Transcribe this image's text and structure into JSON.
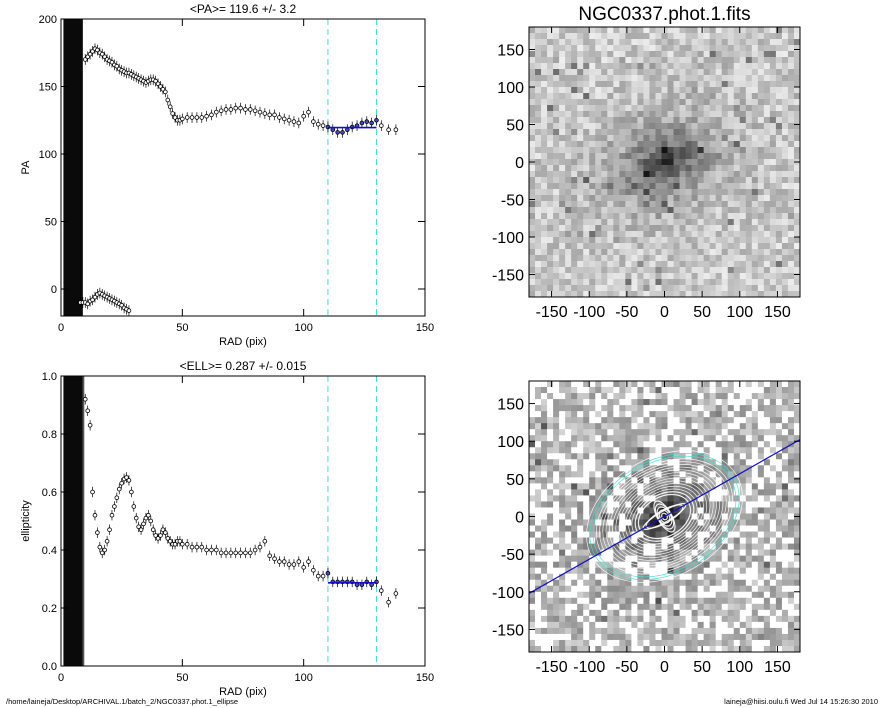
{
  "chart_data": [
    {
      "type": "scatter",
      "title": "<PA>= 119.6 +/-   3.2",
      "xlabel": "RAD (pix)",
      "ylabel": "PA",
      "xlim": [
        0,
        150
      ],
      "ylim": [
        -20,
        200
      ],
      "xticks": [
        "0",
        "50",
        "100",
        "150"
      ],
      "yticks": [
        "200",
        "150",
        "100",
        "50",
        "0"
      ],
      "vlines": [
        110,
        130
      ],
      "fit": {
        "value": 119.6,
        "x_range": [
          110,
          130
        ]
      },
      "masked_x_range": [
        1,
        9
      ],
      "series": [
        {
          "x": [
            10,
            11,
            12,
            13,
            14,
            15,
            16,
            17,
            18,
            19,
            20,
            21,
            22,
            23,
            24,
            25,
            26,
            27,
            28,
            29,
            30,
            31,
            32,
            33,
            34,
            35,
            36,
            37,
            38,
            39,
            40,
            41,
            42,
            43,
            44,
            45,
            46,
            47,
            48,
            49,
            50,
            52,
            54,
            56,
            58,
            60,
            62,
            64,
            66,
            68,
            70,
            72,
            74,
            76,
            78,
            80,
            82,
            84,
            86,
            88,
            90,
            92,
            94,
            96,
            98,
            100,
            102,
            104,
            106,
            108,
            110,
            112,
            114,
            116,
            118,
            120,
            122,
            124,
            126,
            128,
            130,
            132,
            135,
            138
          ],
          "y": [
            170,
            172,
            174,
            176,
            178,
            177,
            175,
            174,
            172,
            170,
            169,
            168,
            166,
            165,
            163,
            162,
            161,
            160,
            160,
            159,
            158,
            157,
            156,
            155,
            154,
            153,
            154,
            155,
            155,
            154,
            152,
            150,
            148,
            146,
            140,
            135,
            130,
            127,
            125,
            125,
            126,
            127,
            127,
            127,
            127,
            128,
            129,
            131,
            132,
            133,
            133,
            134,
            134,
            133,
            133,
            132,
            131,
            130,
            129,
            129,
            127,
            126,
            125,
            124,
            123,
            128,
            131,
            124,
            122,
            121,
            120,
            118,
            116,
            116,
            118,
            120,
            121,
            123,
            124,
            123,
            125,
            121,
            118,
            118
          ]
        },
        {
          "x": [
            8,
            9,
            10,
            11,
            12,
            13,
            14,
            15,
            16,
            17,
            18,
            19,
            20,
            21,
            22,
            23,
            24,
            25,
            26,
            27,
            28
          ],
          "y": [
            -10,
            -10,
            -10,
            -11,
            -9,
            -8,
            -6,
            -4,
            -3,
            -4,
            -5,
            -6,
            -7,
            -8,
            -9,
            -10,
            -11,
            -12,
            -14,
            -15,
            -16
          ]
        }
      ]
    },
    {
      "type": "scatter",
      "title": "<ELL>= 0.287 +/-  0.015",
      "xlabel": "RAD (pix)",
      "ylabel": "ellipticity",
      "xlim": [
        0,
        150
      ],
      "ylim": [
        0.0,
        1.0
      ],
      "xticks": [
        "0",
        "50",
        "100",
        "150"
      ],
      "yticks": [
        "1.0",
        "0.8",
        "0.6",
        "0.4",
        "0.2",
        "0.0"
      ],
      "vlines": [
        110,
        130
      ],
      "fit": {
        "value": 0.287,
        "x_range": [
          110,
          130
        ]
      },
      "masked_x_range": [
        1,
        9
      ],
      "series": [
        {
          "x": [
            10,
            11,
            12,
            13,
            14,
            15,
            16,
            17,
            18,
            19,
            20,
            21,
            22,
            23,
            24,
            25,
            26,
            27,
            28,
            29,
            30,
            31,
            32,
            33,
            34,
            35,
            36,
            37,
            38,
            39,
            40,
            41,
            42,
            43,
            44,
            45,
            46,
            47,
            48,
            49,
            50,
            52,
            54,
            56,
            58,
            60,
            62,
            64,
            66,
            68,
            70,
            72,
            74,
            76,
            78,
            80,
            82,
            84,
            86,
            88,
            90,
            92,
            94,
            96,
            98,
            100,
            102,
            104,
            106,
            108,
            110,
            112,
            114,
            116,
            118,
            120,
            122,
            124,
            126,
            128,
            130,
            132,
            135,
            138
          ],
          "y": [
            0.92,
            0.88,
            0.83,
            0.6,
            0.52,
            0.46,
            0.41,
            0.39,
            0.4,
            0.43,
            0.47,
            0.52,
            0.55,
            0.58,
            0.61,
            0.63,
            0.645,
            0.65,
            0.64,
            0.6,
            0.55,
            0.51,
            0.48,
            0.47,
            0.49,
            0.51,
            0.52,
            0.5,
            0.47,
            0.45,
            0.44,
            0.45,
            0.47,
            0.46,
            0.44,
            0.43,
            0.42,
            0.42,
            0.43,
            0.43,
            0.42,
            0.42,
            0.41,
            0.41,
            0.41,
            0.4,
            0.4,
            0.4,
            0.39,
            0.39,
            0.39,
            0.39,
            0.39,
            0.39,
            0.39,
            0.4,
            0.41,
            0.43,
            0.38,
            0.37,
            0.36,
            0.36,
            0.35,
            0.35,
            0.36,
            0.34,
            0.36,
            0.33,
            0.31,
            0.31,
            0.32,
            0.29,
            0.29,
            0.29,
            0.29,
            0.29,
            0.28,
            0.28,
            0.29,
            0.28,
            0.29,
            0.26,
            0.22,
            0.25
          ]
        }
      ]
    },
    {
      "type": "heatmap",
      "title": "NGC0337.phot.1.fits",
      "xlim": [
        -180,
        180
      ],
      "ylim": [
        -180,
        180
      ],
      "xticks": [
        "-150",
        "-100",
        "-50",
        "0",
        "50",
        "100",
        "150"
      ],
      "yticks": [
        "150",
        "100",
        "50",
        "0",
        "-50",
        "-100",
        "-150"
      ]
    },
    {
      "type": "heatmap",
      "title": "",
      "xlim": [
        -180,
        180
      ],
      "ylim": [
        -180,
        180
      ],
      "xticks": [
        "-150",
        "-100",
        "-50",
        "0",
        "50",
        "100",
        "150"
      ],
      "yticks": [
        "150",
        "100",
        "50",
        "0",
        "-50",
        "-100",
        "-150"
      ],
      "major_axis_pa_deg": 119.6,
      "ellipse_ell": 0.287
    }
  ],
  "footer": {
    "path": "/home/laineja/Desktop/ARCHIVAL.1/batch_2/NGC0337.phot.1_ellipse",
    "stamp": "laineja@hiisi.oulu.fi  Wed Jul 14 15:26:30 2010"
  },
  "colors": {
    "vline": "#40e0d0",
    "fit": "#1010c8",
    "points": "#000000"
  }
}
